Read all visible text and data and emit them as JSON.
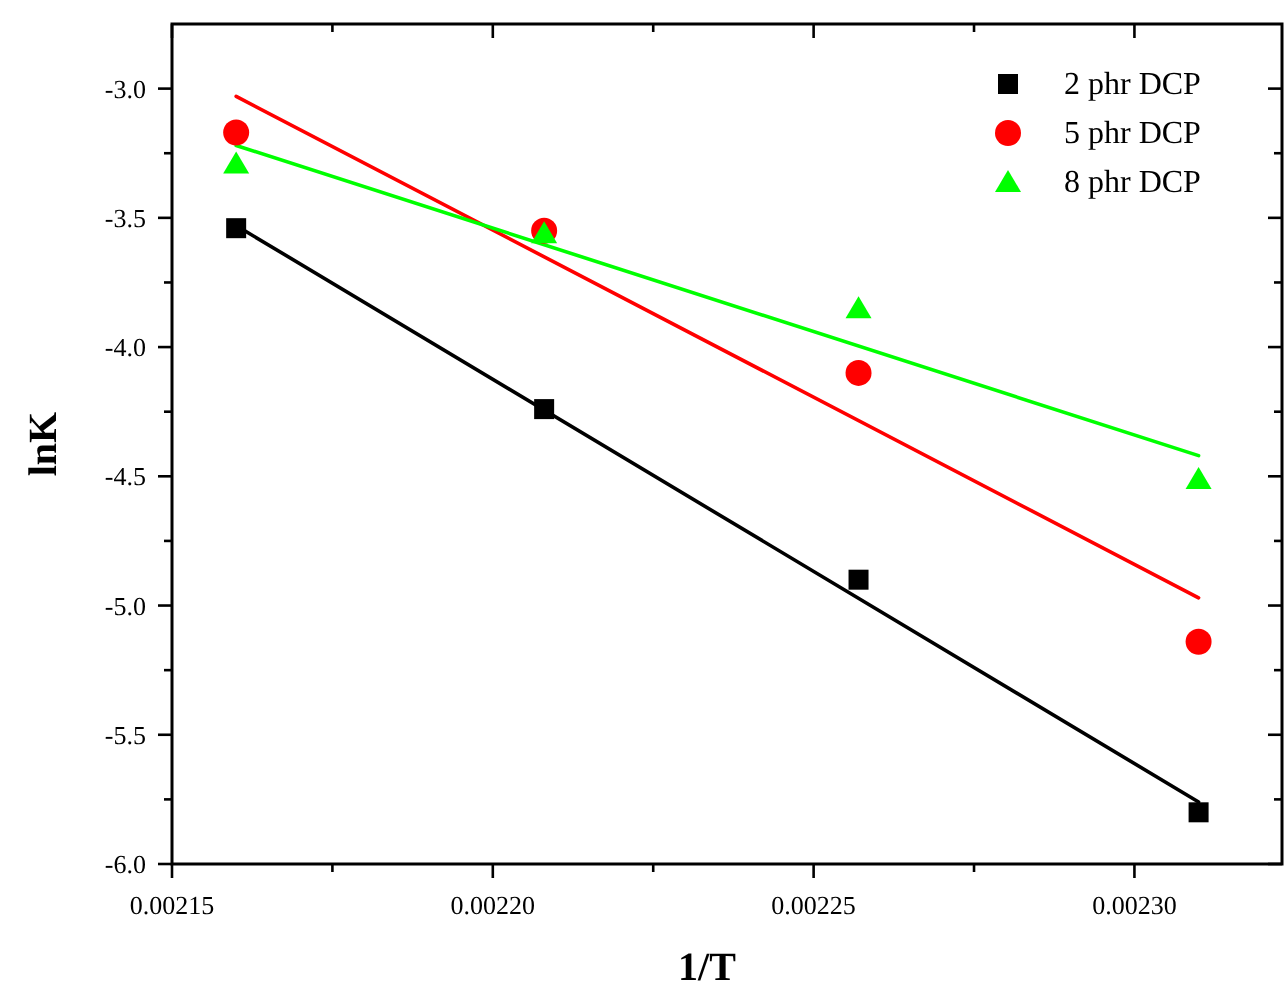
{
  "chart_data": {
    "type": "scatter",
    "xlabel": "1/T",
    "ylabel": "lnK",
    "xlim": [
      0.00215,
      0.002323
    ],
    "ylim": [
      -6.0,
      -2.75
    ],
    "xticks": [
      {
        "value": 0.00215,
        "label": "0.00215"
      },
      {
        "value": 0.002175,
        "label": null
      },
      {
        "value": 0.0022,
        "label": "0.00220"
      },
      {
        "value": 0.002225,
        "label": null
      },
      {
        "value": 0.00225,
        "label": "0.00225"
      },
      {
        "value": 0.002275,
        "label": null
      },
      {
        "value": 0.0023,
        "label": "0.00230"
      }
    ],
    "yticks": [
      {
        "value": -6.0,
        "label": "-6.0"
      },
      {
        "value": -5.75,
        "label": null
      },
      {
        "value": -5.5,
        "label": "-5.5"
      },
      {
        "value": -5.25,
        "label": null
      },
      {
        "value": -5.0,
        "label": "-5.0"
      },
      {
        "value": -4.75,
        "label": null
      },
      {
        "value": -4.5,
        "label": "-4.5"
      },
      {
        "value": -4.25,
        "label": null
      },
      {
        "value": -4.0,
        "label": "-4.0"
      },
      {
        "value": -3.75,
        "label": null
      },
      {
        "value": -3.5,
        "label": "-3.5"
      },
      {
        "value": -3.25,
        "label": null
      },
      {
        "value": -3.0,
        "label": "-3.0"
      }
    ],
    "grid": false,
    "legend": "top right",
    "series": [
      {
        "name": "2 phr DCP",
        "color": "#000000",
        "marker": "square",
        "x": [
          0.00216,
          0.002208,
          0.002257,
          0.00231
        ],
        "values": [
          -3.54,
          -4.24,
          -4.9,
          -5.8
        ]
      },
      {
        "name": "5 phr DCP",
        "color": "#ff0000",
        "marker": "circle",
        "x": [
          0.00216,
          0.002208,
          0.002257,
          0.00231
        ],
        "values": [
          -3.17,
          -3.55,
          -4.1,
          -5.14
        ]
      },
      {
        "name": "8 phr DCP",
        "color": "#00ff00",
        "marker": "triangle",
        "x": [
          0.00216,
          0.002208,
          0.002257,
          0.00231
        ],
        "values": [
          -3.29,
          -3.56,
          -3.85,
          -4.51
        ]
      },
      {
        "type": "line",
        "color": "#000000",
        "x": [
          0.00216,
          0.00231
        ],
        "values": [
          -3.53,
          -5.76
        ]
      },
      {
        "type": "line",
        "color": "#ff0000",
        "x": [
          0.00216,
          0.00231
        ],
        "values": [
          -3.03,
          -4.97
        ]
      },
      {
        "type": "line",
        "color": "#00ff00",
        "x": [
          0.00216,
          0.00231
        ],
        "values": [
          -3.22,
          -4.42
        ]
      }
    ]
  }
}
